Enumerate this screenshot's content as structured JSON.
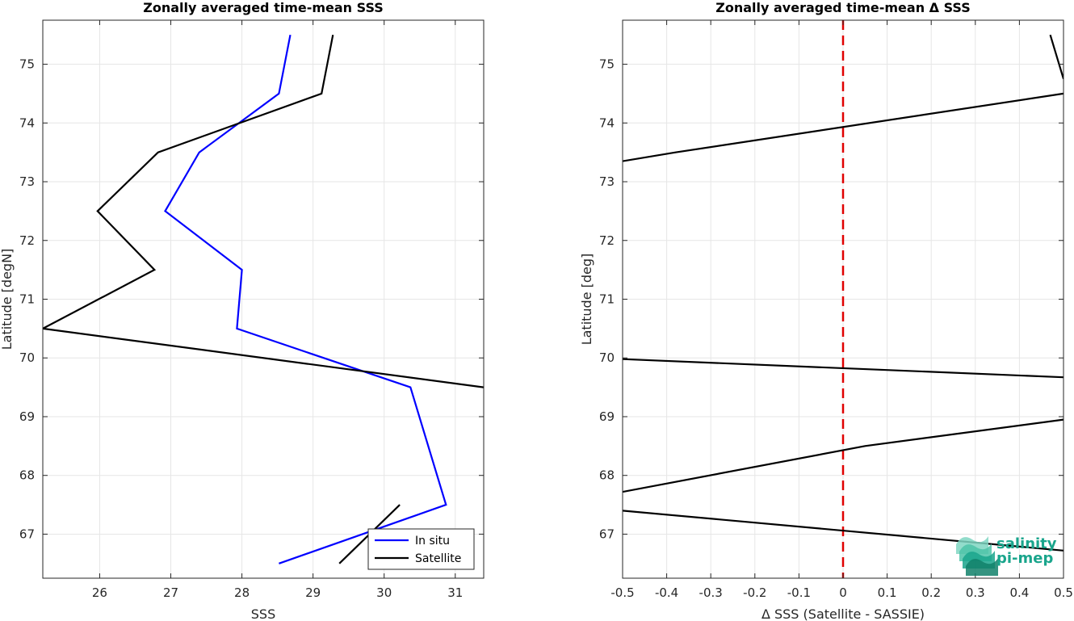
{
  "chart_data": [
    {
      "type": "line",
      "title": "Zonally averaged time-mean SSS",
      "xlabel": "SSS",
      "ylabel": "Latitude [degN]",
      "xlim": [
        25.2,
        31.4
      ],
      "ylim": [
        66.25,
        75.75
      ],
      "xticks": [
        26,
        27,
        28,
        29,
        30,
        31
      ],
      "yticks": [
        67,
        68,
        69,
        70,
        71,
        72,
        73,
        74,
        75
      ],
      "grid": true,
      "legend_position": "bottom-right",
      "series": [
        {
          "name": "In situ",
          "color": "#0000ff",
          "segments": [
            [
              [
                28.68,
                75.5
              ],
              [
                28.52,
                74.5
              ],
              [
                27.4,
                73.5
              ],
              [
                26.92,
                72.5
              ],
              [
                28.0,
                71.5
              ],
              [
                27.93,
                70.5
              ],
              [
                30.37,
                69.5
              ],
              [
                30.87,
                67.5
              ],
              [
                28.52,
                66.5
              ]
            ]
          ]
        },
        {
          "name": "Satellite",
          "color": "#000000",
          "segments": [
            [
              [
                29.28,
                75.5
              ],
              [
                29.12,
                74.5
              ],
              [
                26.82,
                73.5
              ],
              [
                25.97,
                72.5
              ],
              [
                26.77,
                71.5
              ],
              [
                25.2,
                70.5
              ],
              [
                31.4,
                69.5
              ]
            ],
            [
              [
                30.22,
                67.5
              ],
              [
                29.37,
                66.5
              ]
            ]
          ]
        }
      ]
    },
    {
      "type": "line",
      "title": "Zonally averaged time-mean Δ SSS",
      "xlabel": "Δ SSS (Satellite - SASSIE)",
      "ylabel": "Latitude [deg]",
      "xlim": [
        -0.5,
        0.5
      ],
      "ylim": [
        66.25,
        75.75
      ],
      "xticks": [
        -0.5,
        -0.4,
        -0.3,
        -0.2,
        -0.1,
        0,
        0.1,
        0.2,
        0.3,
        0.4,
        0.5
      ],
      "xtick_labels": [
        "-0.5",
        "-0.4",
        "-0.3",
        "-0.2",
        "-0.1",
        "0",
        "0.1",
        "0.2",
        "0.3",
        "0.4",
        "0.5"
      ],
      "yticks": [
        67,
        68,
        69,
        70,
        71,
        72,
        73,
        74,
        75
      ],
      "grid": true,
      "reference_line": {
        "x": 0,
        "color": "#e00000",
        "style": "dashed"
      },
      "series": [
        {
          "color": "#000000",
          "segments": [
            [
              [
                0.47,
                75.5
              ],
              [
                0.5,
                74.75
              ]
            ],
            [
              [
                -0.5,
                73.35
              ],
              [
                -0.38,
                73.5
              ],
              [
                0.5,
                74.5
              ]
            ],
            [
              [
                -0.5,
                69.98
              ],
              [
                0.5,
                69.67
              ]
            ],
            [
              [
                -0.5,
                67.72
              ],
              [
                0.05,
                68.5
              ],
              [
                0.5,
                68.95
              ]
            ],
            [
              [
                -0.5,
                67.4
              ],
              [
                0.5,
                66.72
              ]
            ]
          ]
        }
      ]
    }
  ],
  "logo": {
    "line1": "salinity",
    "line2": "pi-mep"
  }
}
